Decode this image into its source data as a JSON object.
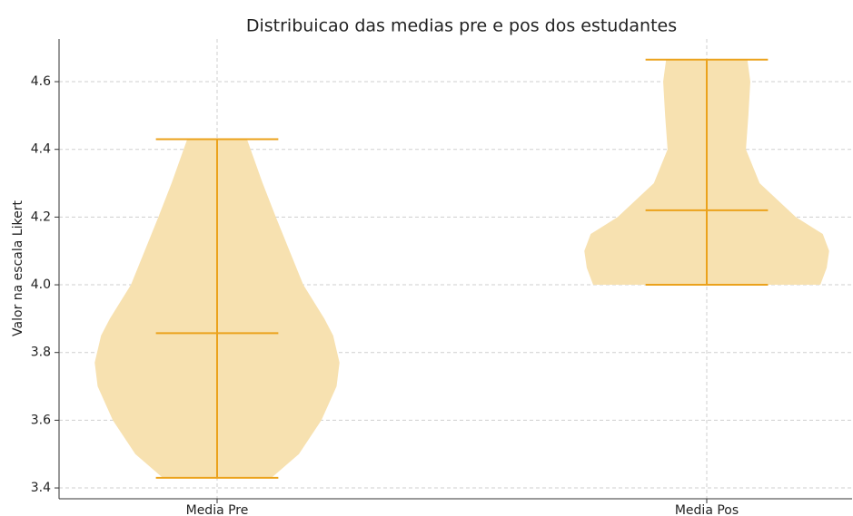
{
  "chart_data": {
    "type": "violin",
    "title": "Distribuicao das medias pre e pos dos estudantes",
    "y_label": "Valor na escala Likert",
    "categories": [
      "Media Pre",
      "Media Pos"
    ],
    "ylim": [
      3.368,
      4.726
    ],
    "yticks": [
      3.4,
      3.6,
      3.8,
      {
        "value": 4,
        "label": "4.0"
      },
      4.2,
      4.4,
      4.6
    ],
    "grid": true,
    "fill_color": "#f7e1b0",
    "line_color": "#eba21c",
    "violins": [
      {
        "min": 3.43,
        "max": 4.43,
        "mean": 3.857,
        "density_y": [
          3.43,
          3.5,
          3.6,
          3.7,
          3.77,
          3.85,
          3.9,
          4.0,
          4.1,
          4.2,
          4.3,
          4.43
        ],
        "density": [
          0.111,
          0.167,
          0.213,
          0.244,
          0.25,
          0.237,
          0.219,
          0.176,
          0.148,
          0.12,
          0.093,
          0.061
        ]
      },
      {
        "min": 4.0,
        "max": 4.665,
        "mean": 4.22,
        "density_y": [
          4.0,
          4.05,
          4.1,
          4.15,
          4.2,
          4.3,
          4.4,
          4.5,
          4.6,
          4.665
        ],
        "density": [
          0.232,
          0.245,
          0.25,
          0.237,
          0.182,
          0.108,
          0.08,
          0.085,
          0.089,
          0.083
        ]
      }
    ]
  }
}
